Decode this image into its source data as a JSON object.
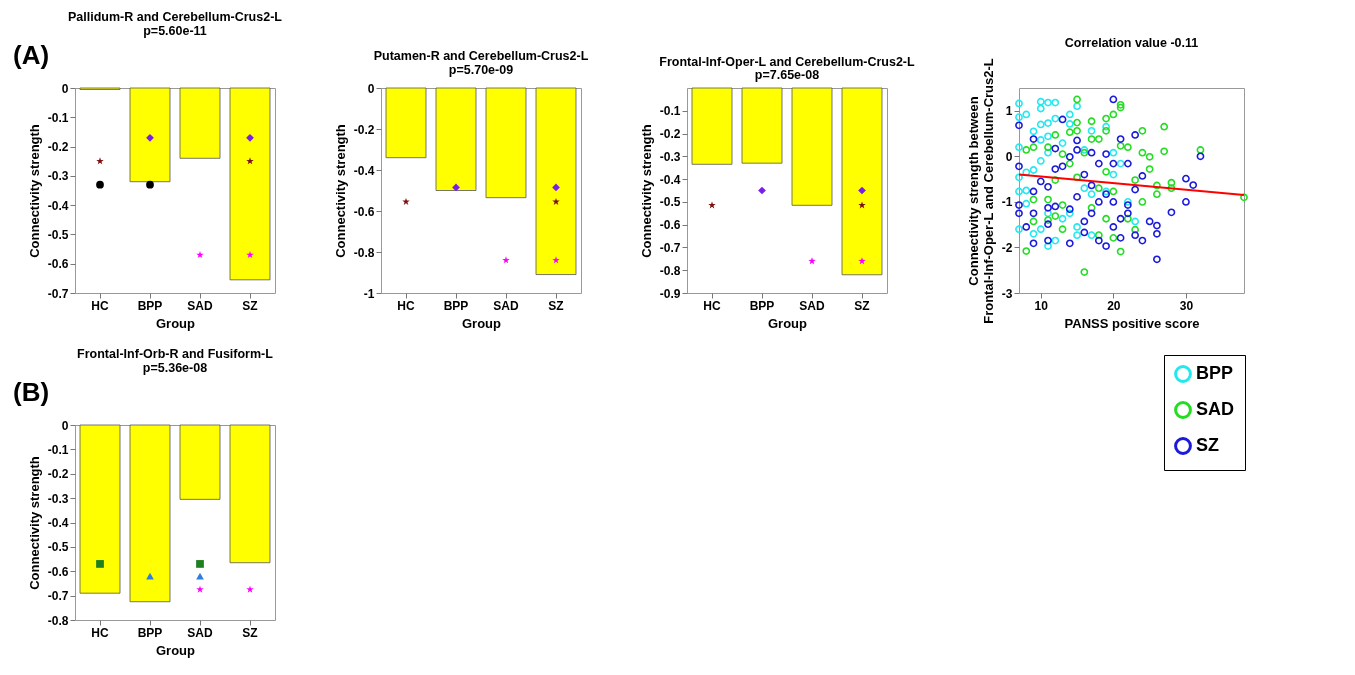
{
  "chart_data": [
    {
      "type": "bar",
      "title": "Pallidum-R and  Cerebellum-Crus2-L",
      "subtitle": "p=5.60e-11",
      "xlabel": "Group",
      "ylabel": "Connectivity strength",
      "annotations": [
        "(A)"
      ],
      "categories": [
        "HC",
        "BPP",
        "SAD",
        "SZ"
      ],
      "ylim": [
        -0.7,
        0
      ],
      "yticks": [
        0,
        -0.1,
        -0.2,
        -0.3,
        -0.4,
        -0.5,
        -0.6,
        -0.7
      ],
      "series": [
        {
          "type": "bar",
          "color": "#ffff00",
          "values": [
            -0.005,
            -0.32,
            -0.24,
            -0.655
          ]
        },
        {
          "type": "scatter",
          "marker": "circle",
          "color": "#000000",
          "x": [
            "HC",
            "BPP"
          ],
          "values": [
            -0.33,
            -0.33
          ]
        },
        {
          "type": "scatter",
          "marker": "star",
          "color": "#7f1010",
          "x": [
            "HC",
            "SZ"
          ],
          "values": [
            -0.25,
            -0.25
          ]
        },
        {
          "type": "scatter",
          "marker": "diamond",
          "color": "#7a1fe8",
          "x": [
            "BPP",
            "SZ"
          ],
          "values": [
            -0.17,
            -0.17
          ]
        },
        {
          "type": "scatter",
          "marker": "star",
          "color": "#ff00ff",
          "x": [
            "SAD",
            "SZ"
          ],
          "values": [
            -0.57,
            -0.57
          ]
        }
      ]
    },
    {
      "type": "bar",
      "title": "Putamen-R and  Cerebellum-Crus2-L",
      "subtitle": "p=5.70e-09",
      "xlabel": "Group",
      "ylabel": "Connectivity strength",
      "categories": [
        "HC",
        "BPP",
        "SAD",
        "SZ"
      ],
      "ylim": [
        -1,
        0
      ],
      "yticks": [
        0,
        -0.2,
        -0.4,
        -0.6,
        -0.8,
        -1
      ],
      "series": [
        {
          "type": "bar",
          "color": "#ffff00",
          "values": [
            -0.34,
            -0.5,
            -0.535,
            -0.91
          ]
        },
        {
          "type": "scatter",
          "marker": "star",
          "color": "#7f1010",
          "x": [
            "HC",
            "SZ"
          ],
          "values": [
            -0.555,
            -0.555
          ]
        },
        {
          "type": "scatter",
          "marker": "diamond",
          "color": "#7a1fe8",
          "x": [
            "BPP",
            "SZ"
          ],
          "values": [
            -0.485,
            -0.485
          ]
        },
        {
          "type": "scatter",
          "marker": "star",
          "color": "#ff00ff",
          "x": [
            "SAD",
            "SZ"
          ],
          "values": [
            -0.84,
            -0.84
          ]
        }
      ]
    },
    {
      "type": "bar",
      "title": "Frontal-Inf-Oper-L and  Cerebellum-Crus2-L",
      "subtitle": "p=7.65e-08",
      "xlabel": "Group",
      "ylabel": "Connectivity strength",
      "categories": [
        "HC",
        "BPP",
        "SAD",
        "SZ"
      ],
      "ylim": [
        -0.9,
        0
      ],
      "yticks": [
        -0.1,
        -0.2,
        -0.3,
        -0.4,
        -0.5,
        -0.6,
        -0.7,
        -0.8,
        -0.9
      ],
      "series": [
        {
          "type": "bar",
          "color": "#ffff00",
          "values": [
            -0.335,
            -0.33,
            -0.515,
            -0.82
          ]
        },
        {
          "type": "scatter",
          "marker": "star",
          "color": "#7f1010",
          "x": [
            "HC",
            "SZ"
          ],
          "values": [
            -0.515,
            -0.515
          ]
        },
        {
          "type": "scatter",
          "marker": "diamond",
          "color": "#7a1fe8",
          "x": [
            "BPP",
            "SZ"
          ],
          "values": [
            -0.45,
            -0.45
          ]
        },
        {
          "type": "scatter",
          "marker": "star",
          "color": "#ff00ff",
          "x": [
            "SAD",
            "SZ"
          ],
          "values": [
            -0.76,
            -0.76
          ]
        }
      ]
    },
    {
      "type": "scatter",
      "title": "Correlation value -0.11",
      "xlabel": "PANSS positive score",
      "ylabel": "Connectivity strength between\nFrontal-Inf-Oper-L and  Cerebellum-Crus2-L",
      "xlim": [
        7,
        38
      ],
      "xticks": [
        10,
        20,
        30
      ],
      "ylim": [
        -3,
        1.5
      ],
      "yticks": [
        -3,
        -2,
        -1,
        0,
        1
      ],
      "legend": "bottom right",
      "marker": "circle",
      "series": [
        {
          "name": "BPP",
          "color": "#22e8f0",
          "x": [
            7,
            7,
            7,
            7,
            7,
            7,
            8,
            8,
            8,
            8,
            9,
            9,
            9,
            10,
            10,
            10,
            10,
            10,
            10,
            11,
            11,
            11,
            11,
            11,
            11,
            12,
            12,
            12,
            13,
            13,
            14,
            14,
            14,
            15,
            15,
            15,
            16,
            16,
            17,
            17,
            17,
            19,
            19,
            20,
            20,
            21,
            22,
            23
          ],
          "values": [
            1.16,
            0.86,
            0.2,
            -0.46,
            -0.77,
            -1.6,
            0.92,
            -0.35,
            -0.75,
            -1.04,
            0.55,
            -0.3,
            -1.7,
            1.2,
            1.05,
            0.7,
            0.36,
            -0.1,
            -1.6,
            1.18,
            0.73,
            0.44,
            0.08,
            -1.97,
            -1.25,
            1.18,
            0.83,
            -1.85,
            0.29,
            -1.37,
            0.92,
            0.71,
            -1.25,
            1.1,
            -1.55,
            -1.73,
            0.14,
            -0.7,
            0.56,
            -1.73,
            -0.83,
            0.65,
            -0.77,
            0.08,
            -0.4,
            -0.16,
            -1.0,
            -1.43
          ]
        },
        {
          "name": "SAD",
          "color": "#22dd22",
          "x": [
            8,
            8,
            9,
            9,
            9,
            11,
            11,
            11,
            12,
            12,
            12,
            13,
            13,
            13,
            14,
            14,
            15,
            15,
            15,
            15,
            16,
            16,
            17,
            17,
            17,
            18,
            18,
            18,
            19,
            19,
            19,
            19,
            20,
            20,
            20,
            21,
            21,
            21,
            21,
            22,
            22,
            23,
            23,
            24,
            24,
            24,
            25,
            25,
            26,
            26,
            27,
            27,
            28,
            28,
            32,
            38
          ],
          "values": [
            -2.08,
            0.14,
            0.2,
            -1.43,
            -0.95,
            0.2,
            -0.95,
            -1.4,
            0.47,
            -1.31,
            -0.52,
            0.05,
            -1.6,
            -1.07,
            0.53,
            -0.16,
            1.25,
            0.74,
            0.56,
            -0.46,
            -2.54,
            0.08,
            0.77,
            0.38,
            -1.13,
            0.38,
            -1.73,
            -0.7,
            0.83,
            0.56,
            -0.34,
            -1.37,
            0.92,
            -1.79,
            -0.77,
            1.13,
            1.07,
            -2.09,
            0.23,
            0.2,
            -1.37,
            -0.52,
            -1.61,
            0.56,
            0.08,
            -1.0,
            -0.01,
            -0.28,
            -0.64,
            -0.83,
            0.65,
            0.11,
            -0.58,
            -0.7,
            0.14,
            -0.9
          ]
        },
        {
          "name": "SZ",
          "color": "#1a1adc",
          "x": [
            7,
            7,
            7,
            7,
            8,
            9,
            9,
            9,
            9,
            10,
            11,
            11,
            11,
            11,
            12,
            12,
            12,
            13,
            13,
            14,
            14,
            14,
            15,
            15,
            15,
            16,
            16,
            16,
            17,
            17,
            17,
            18,
            18,
            18,
            19,
            19,
            19,
            20,
            20,
            20,
            20,
            21,
            21,
            21,
            22,
            22,
            22,
            23,
            23,
            23,
            24,
            24,
            25,
            26,
            26,
            26,
            28,
            30,
            30,
            31,
            32
          ],
          "values": [
            0.68,
            -0.22,
            -1.25,
            -1.07,
            -1.55,
            0.38,
            -0.77,
            -1.25,
            -1.91,
            -0.55,
            -1.13,
            -1.49,
            -1.85,
            -0.67,
            0.17,
            -0.28,
            -1.1,
            0.81,
            -0.22,
            -0.01,
            -1.91,
            -1.16,
            0.35,
            0.14,
            -0.89,
            -0.4,
            -1.43,
            -1.67,
            0.08,
            -0.64,
            -1.25,
            -0.16,
            -1.0,
            -1.85,
            0.05,
            -0.83,
            -1.97,
            1.25,
            -0.16,
            -1.0,
            -1.55,
            0.38,
            -1.37,
            -1.79,
            -0.16,
            -1.07,
            -1.25,
            0.47,
            -0.73,
            -1.73,
            -0.43,
            -1.85,
            -1.43,
            -1.52,
            -2.26,
            -1.7,
            -1.23,
            -0.49,
            -1.0,
            -0.63,
            0.0
          ]
        },
        {
          "type": "line",
          "marker": "none",
          "color": "#ff0000",
          "x": [
            7,
            38
          ],
          "values": [
            -0.4,
            -0.85
          ]
        }
      ]
    },
    {
      "type": "bar",
      "title": "Frontal-Inf-Orb-R and  Fusiform-L",
      "subtitle": "p=5.36e-08",
      "xlabel": "Group",
      "ylabel": "Connectivity strength",
      "annotations": [
        "(B)"
      ],
      "categories": [
        "HC",
        "BPP",
        "SAD",
        "SZ"
      ],
      "ylim": [
        -0.8,
        0
      ],
      "yticks": [
        0,
        -0.1,
        -0.2,
        -0.3,
        -0.4,
        -0.5,
        -0.6,
        -0.7,
        -0.8
      ],
      "series": [
        {
          "type": "bar",
          "color": "#ffff00",
          "values": [
            -0.69,
            -0.725,
            -0.305,
            -0.565
          ]
        },
        {
          "type": "scatter",
          "marker": "square",
          "color": "#1f7f1f",
          "x": [
            "HC",
            "SAD"
          ],
          "values": [
            -0.57,
            -0.57
          ]
        },
        {
          "type": "scatter",
          "marker": "triangle",
          "color": "#2a7fdf",
          "x": [
            "BPP",
            "SAD"
          ],
          "values": [
            -0.62,
            -0.62
          ]
        },
        {
          "type": "scatter",
          "marker": "star",
          "color": "#ff00ff",
          "x": [
            "SAD",
            "SZ"
          ],
          "values": [
            -0.675,
            -0.675
          ]
        }
      ]
    }
  ]
}
